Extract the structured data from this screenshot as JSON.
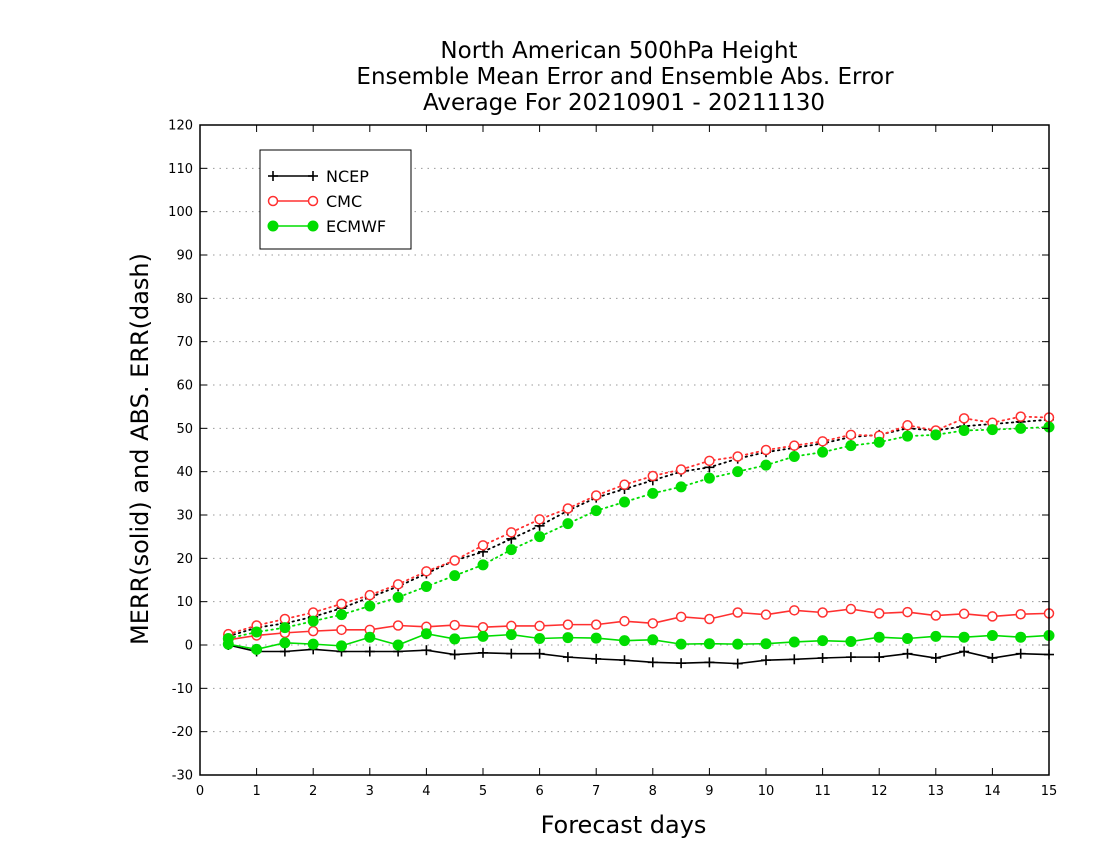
{
  "chart_data": {
    "type": "line",
    "title_lines": [
      "North American 500hPa Height",
      "Ensemble Mean Error and Ensemble Abs. Error",
      "Average For 20210901 - 20211130"
    ],
    "xlabel": "Forecast days",
    "ylabel": "MERR(solid) and ABS. ERR(dash)",
    "xlim": [
      0,
      15
    ],
    "ylim": [
      -30,
      120
    ],
    "x_ticks": [
      0,
      1,
      2,
      3,
      4,
      5,
      6,
      7,
      8,
      9,
      10,
      11,
      12,
      13,
      14,
      15
    ],
    "y_ticks": [
      -30,
      -20,
      -10,
      0,
      10,
      20,
      30,
      40,
      50,
      60,
      70,
      80,
      90,
      100,
      110,
      120
    ],
    "grid": "horizontal dotted",
    "legend_position": "top-left",
    "x": [
      0.5,
      1,
      1.5,
      2,
      2.5,
      3,
      3.5,
      4,
      4.5,
      5,
      5.5,
      6,
      6.5,
      7,
      7.5,
      8,
      8.5,
      9,
      9.5,
      10,
      10.5,
      11,
      11.5,
      12,
      12.5,
      13,
      13.5,
      14,
      14.5,
      15
    ],
    "series": [
      {
        "name": "NCEP",
        "color": "#000000",
        "marker": "plus",
        "merr": [
          0,
          -1.5,
          -1.5,
          -1,
          -1.5,
          -1.5,
          -1.5,
          -1.2,
          -2.2,
          -1.8,
          -2,
          -2,
          -2.8,
          -3.2,
          -3.5,
          -4,
          -4.2,
          -4,
          -4.3,
          -3.5,
          -3.3,
          -3,
          -2.8,
          -2.8,
          -2,
          -3,
          -1.5,
          -3,
          -2,
          -2.2
        ],
        "abs_err": [
          2,
          4,
          5,
          6.5,
          8.5,
          11,
          13.5,
          16.5,
          19.5,
          21.5,
          24.5,
          27.5,
          31,
          34,
          36,
          38,
          40,
          41,
          43,
          44.5,
          45.5,
          46.5,
          48,
          48.5,
          50,
          49.5,
          50.5,
          51,
          51.5,
          52
        ]
      },
      {
        "name": "CMC",
        "color": "#ff3030",
        "marker": "open-circle",
        "merr": [
          1.2,
          2.2,
          2.8,
          3.2,
          3.5,
          3.5,
          4.5,
          4.2,
          4.6,
          4.1,
          4.4,
          4.4,
          4.7,
          4.7,
          5.5,
          5,
          6.5,
          6,
          7.5,
          7,
          8,
          7.5,
          8.3,
          7.3,
          7.6,
          6.8,
          7.2,
          6.6,
          7.1,
          7.3
        ],
        "abs_err": [
          2.5,
          4.5,
          6,
          7.5,
          9.5,
          11.5,
          14,
          17,
          19.5,
          23,
          26,
          29,
          31.5,
          34.5,
          37,
          39,
          40.5,
          42.5,
          43.5,
          45,
          46,
          47,
          48.5,
          48.3,
          50.7,
          49.5,
          52.3,
          51.3,
          52.7,
          52.5
        ]
      },
      {
        "name": "ECMWF",
        "color": "#00dd00",
        "marker": "filled-circle",
        "merr": [
          0.2,
          -1,
          0.5,
          0.2,
          -0.2,
          1.8,
          0,
          2.6,
          1.4,
          2,
          2.4,
          1.5,
          1.7,
          1.6,
          1,
          1.2,
          0.2,
          0.3,
          0.2,
          0.3,
          0.7,
          1,
          0.8,
          1.8,
          1.5,
          2,
          1.8,
          2.2,
          1.8,
          2.2
        ],
        "abs_err": [
          1.5,
          3,
          4,
          5.5,
          7,
          9,
          11,
          13.5,
          16,
          18.5,
          22,
          25,
          28,
          31,
          33,
          35,
          36.5,
          38.5,
          40,
          41.5,
          43.5,
          44.5,
          46,
          46.8,
          48.2,
          48.5,
          49.5,
          49.7,
          50,
          50.3
        ]
      }
    ]
  }
}
